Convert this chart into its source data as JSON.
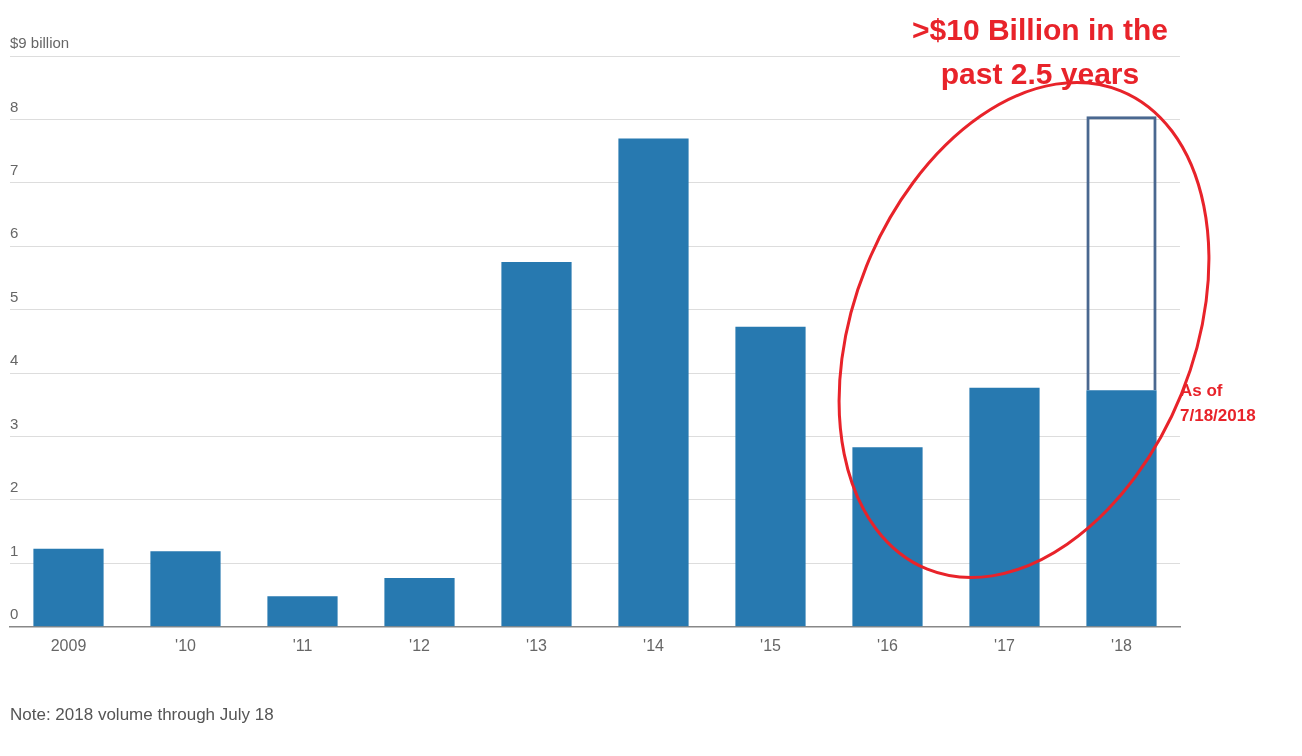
{
  "chart_data": {
    "type": "bar",
    "categories": [
      "2009",
      "'10",
      "'11",
      "'12",
      "'13",
      "'14",
      "'15",
      "'16",
      "'17",
      "'18"
    ],
    "stacked": true,
    "series": [
      {
        "color": "#2779b0",
        "values": [
          1.23,
          1.19,
          0.48,
          0.77,
          5.75,
          7.7,
          4.73,
          2.83,
          3.77,
          3.73
        ]
      },
      {
        "color": "#4a6890",
        "values": [
          null,
          null,
          null,
          null,
          null,
          null,
          null,
          null,
          null,
          4.32
        ]
      }
    ],
    "ylim": [
      0,
      9
    ],
    "yticks": [
      0,
      1,
      2,
      3,
      4,
      5,
      6,
      7,
      8,
      {
        "value": 9,
        "label": "$9 billion"
      }
    ],
    "grid": "y",
    "legend": false,
    "annotations": [
      ">$10 Billion in the past 2.5 years",
      "As of 7/18/2018",
      "Note: 2018 volume through July 18"
    ]
  }
}
